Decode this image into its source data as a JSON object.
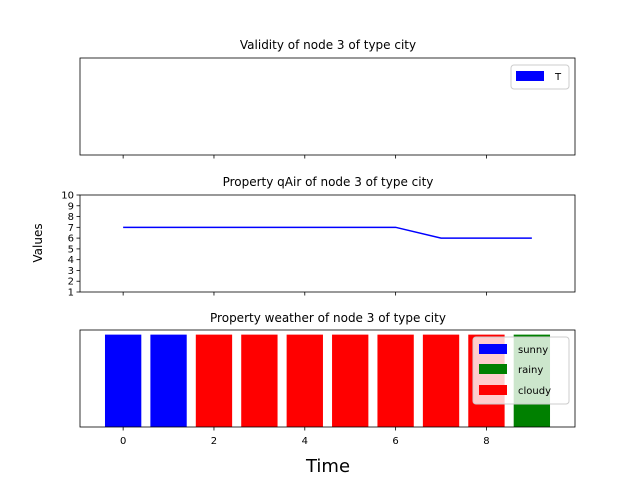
{
  "chart_data": [
    {
      "type": "bar",
      "title": "Validity of node 3 of type city",
      "xlabel": "",
      "ylabel": "",
      "xlim": [
        -0.95,
        9.95
      ],
      "xticks": [
        0,
        2,
        4,
        6,
        8
      ],
      "show_xtick_labels": false,
      "show_yticks": false,
      "legend": {
        "placement": "upper right",
        "entries": [
          {
            "label": "T",
            "color": "#0000ff"
          }
        ]
      },
      "x": [],
      "values": [],
      "grid": false
    },
    {
      "type": "line",
      "title": "Property qAir of node 3 of type city",
      "xlabel": "",
      "ylabel": "Values",
      "xlim": [
        -0.95,
        9.95
      ],
      "ylim": [
        1,
        10
      ],
      "xticks": [
        0,
        2,
        4,
        6,
        8
      ],
      "show_xtick_labels": false,
      "yticks": [
        1,
        2,
        3,
        4,
        5,
        6,
        7,
        8,
        9,
        10
      ],
      "series": [
        {
          "color": "#0000ff",
          "x": [
            0,
            1,
            2,
            3,
            4,
            5,
            6,
            7,
            8,
            9
          ],
          "values": [
            7,
            7,
            7,
            7,
            7,
            7,
            7,
            6,
            6,
            6
          ]
        }
      ],
      "grid": false
    },
    {
      "type": "bar",
      "title": "Property weather of node 3 of type city",
      "xlabel": "Time",
      "ylabel": "",
      "xlim": [
        -0.95,
        9.95
      ],
      "xticks": [
        0,
        2,
        4,
        6,
        8
      ],
      "xtick_labels": [
        "0",
        "2",
        "4",
        "6",
        "8"
      ],
      "show_yticks": false,
      "x": [
        0,
        1,
        2,
        3,
        4,
        5,
        6,
        7,
        8,
        9
      ],
      "categories": [
        "sunny",
        "sunny",
        "cloudy",
        "cloudy",
        "cloudy",
        "cloudy",
        "cloudy",
        "cloudy",
        "cloudy",
        "rainy"
      ],
      "values": [
        1,
        1,
        1,
        1,
        1,
        1,
        1,
        1,
        1,
        1
      ],
      "colors": {
        "sunny": "#0000ff",
        "rainy": "#008000",
        "cloudy": "#ff0000"
      },
      "legend": {
        "placement": "upper right",
        "entries": [
          {
            "label": "sunny",
            "color": "#0000ff"
          },
          {
            "label": "rainy",
            "color": "#008000"
          },
          {
            "label": "cloudy",
            "color": "#ff0000"
          }
        ]
      },
      "grid": false
    }
  ]
}
